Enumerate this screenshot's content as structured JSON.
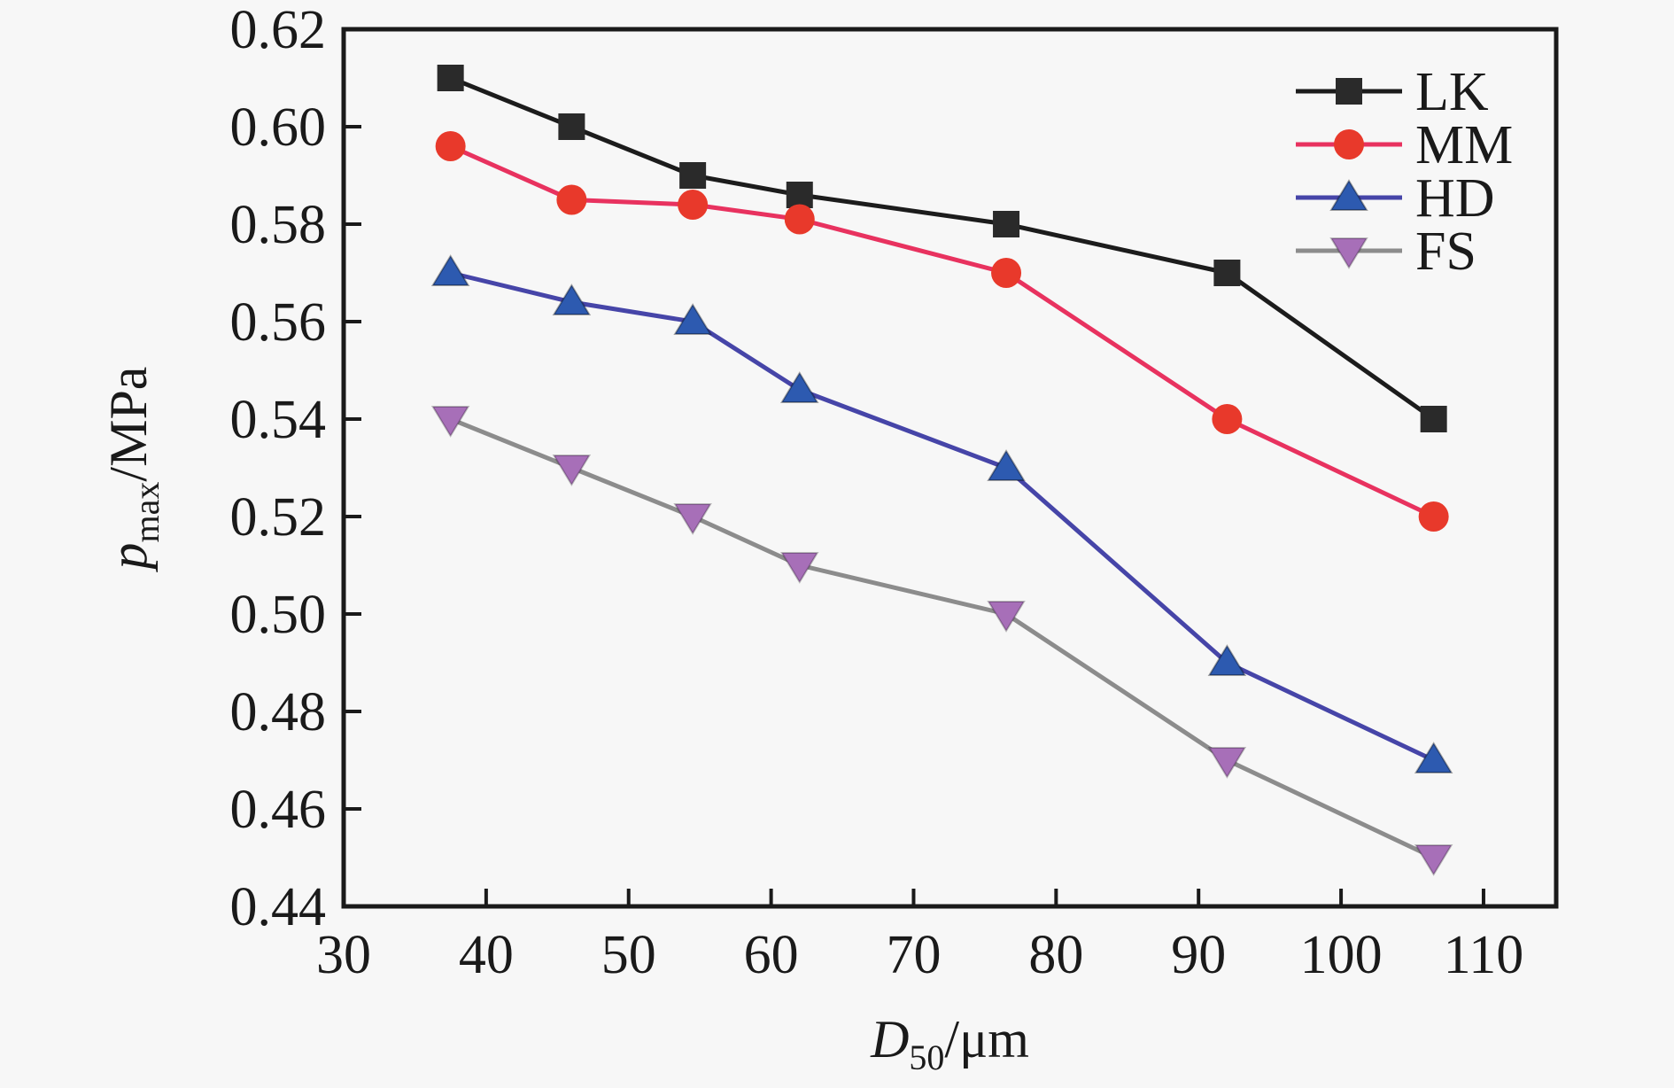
{
  "figure": {
    "background": "#f7f7f7",
    "axis_color": "#1a1a1a"
  },
  "chart_data": {
    "type": "line",
    "title": "",
    "xlabel": {
      "italic": "D",
      "sub": "50",
      "rest": "/μm"
    },
    "ylabel": {
      "italic": "p",
      "sub": "max",
      "rest": "/MPa"
    },
    "x": [
      37.5,
      46,
      54.5,
      62,
      76.5,
      92,
      106.5
    ],
    "series": [
      {
        "name": "LK",
        "values": [
          0.61,
          0.6,
          0.59,
          0.586,
          0.58,
          0.57,
          0.54
        ],
        "line_color": "#1c1c1c",
        "marker": "square",
        "marker_color": "#2a2a2a"
      },
      {
        "name": "MM",
        "values": [
          0.596,
          0.585,
          0.584,
          0.581,
          0.57,
          0.54,
          0.52
        ],
        "line_color": "#e8325f",
        "marker": "circle",
        "marker_color": "#e8392b"
      },
      {
        "name": "HD",
        "values": [
          0.57,
          0.564,
          0.56,
          0.546,
          0.53,
          0.49,
          0.47
        ],
        "line_color": "#4645a8",
        "marker": "triangle-up",
        "marker_color": "#2d5ab0"
      },
      {
        "name": "FS",
        "values": [
          0.54,
          0.53,
          0.52,
          0.51,
          0.5,
          0.47,
          0.45
        ],
        "line_color": "#8c8c8c",
        "marker": "triangle-down",
        "marker_color": "#a76fb8"
      }
    ],
    "xticks": [
      30,
      40,
      50,
      60,
      70,
      80,
      90,
      100,
      110
    ],
    "yticks": [
      0.44,
      0.46,
      0.48,
      0.5,
      0.52,
      0.54,
      0.56,
      0.58,
      0.6,
      0.62
    ],
    "xlim": [
      30,
      115.1
    ],
    "ylim": [
      0.44,
      0.62
    ],
    "grid": false,
    "legend_position": "top-right",
    "legend_labels": [
      "LK",
      "MM",
      "HD",
      "FS"
    ]
  }
}
